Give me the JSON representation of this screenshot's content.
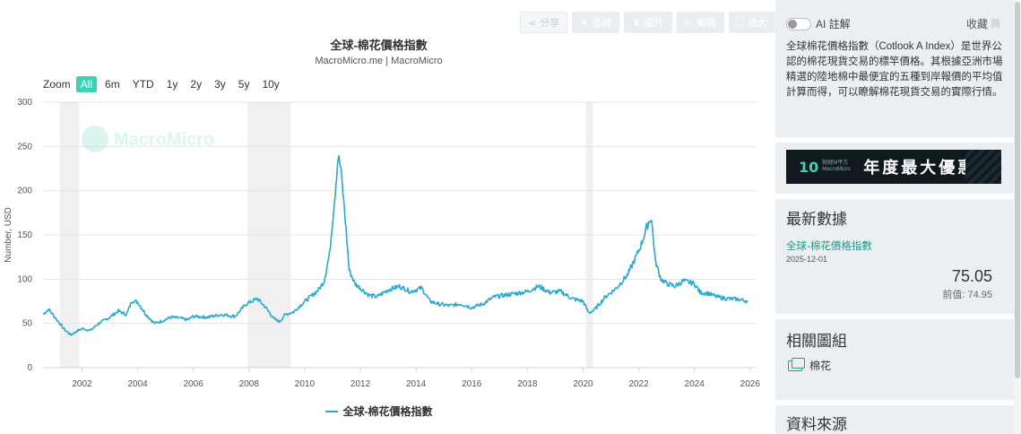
{
  "toolbar": {
    "share_label": "分享",
    "follow_label": "追蹤",
    "image_label": "圖片",
    "edit_label": "編輯",
    "enlarge_label": "放大"
  },
  "chart": {
    "title": "全球-棉花價格指數",
    "subtitle": "MacroMicro.me | MacroMicro",
    "watermark": "MacroMicro",
    "zoom_label": "Zoom",
    "zoom_options": [
      "All",
      "6m",
      "YTD",
      "1y",
      "2y",
      "3y",
      "5y",
      "10y"
    ],
    "zoom_active": "All",
    "legend_label": "全球-棉花價格指數"
  },
  "chart_data": {
    "type": "line",
    "title": "全球-棉花價格指數",
    "subtitle": "MacroMicro.me | MacroMicro",
    "xlabel": "",
    "ylabel": "Number, USD",
    "ylim": [
      0,
      300
    ],
    "yticks": [
      0,
      50,
      100,
      150,
      200,
      250,
      300
    ],
    "xlim": [
      2000.6,
      2026.2
    ],
    "xticks": [
      2002,
      2004,
      2006,
      2008,
      2010,
      2012,
      2014,
      2016,
      2018,
      2020,
      2022,
      2024,
      2026
    ],
    "grid": true,
    "legend_position": "bottom",
    "line_color": "#2aa8cf",
    "recession_shading": [
      [
        2001.2,
        2001.9
      ],
      [
        2007.95,
        2009.5
      ],
      [
        2020.1,
        2020.35
      ]
    ],
    "series": [
      {
        "name": "全球-棉花價格指數",
        "x": [
          2000.6,
          2000.8,
          2001.0,
          2001.2,
          2001.4,
          2001.6,
          2001.8,
          2002.0,
          2002.3,
          2002.6,
          2003.0,
          2003.3,
          2003.6,
          2003.8,
          2004.0,
          2004.3,
          2004.6,
          2004.9,
          2005.2,
          2005.5,
          2005.8,
          2006.0,
          2006.5,
          2007.0,
          2007.5,
          2007.9,
          2008.1,
          2008.3,
          2008.6,
          2008.9,
          2009.1,
          2009.3,
          2009.6,
          2009.9,
          2010.2,
          2010.5,
          2010.7,
          2010.9,
          2011.0,
          2011.1,
          2011.2,
          2011.3,
          2011.45,
          2011.6,
          2011.8,
          2012.0,
          2012.3,
          2012.6,
          2013.0,
          2013.4,
          2013.8,
          2014.2,
          2014.5,
          2014.8,
          2015.2,
          2015.6,
          2016.0,
          2016.4,
          2016.8,
          2017.2,
          2017.6,
          2018.0,
          2018.4,
          2018.8,
          2019.2,
          2019.6,
          2020.0,
          2020.2,
          2020.4,
          2020.8,
          2021.2,
          2021.6,
          2021.9,
          2022.1,
          2022.3,
          2022.45,
          2022.6,
          2022.8,
          2023.0,
          2023.3,
          2023.6,
          2024.0,
          2024.2,
          2024.5,
          2024.8,
          2025.2,
          2025.6,
          2025.92
        ],
        "values": [
          60,
          66,
          58,
          50,
          42,
          37,
          41,
          44,
          42,
          50,
          57,
          64,
          60,
          76,
          74,
          60,
          50,
          53,
          57,
          56,
          54,
          58,
          57,
          60,
          58,
          72,
          75,
          78,
          68,
          55,
          52,
          60,
          63,
          72,
          80,
          88,
          98,
          130,
          165,
          200,
          240,
          225,
          170,
          110,
          95,
          90,
          82,
          80,
          88,
          92,
          86,
          90,
          75,
          72,
          70,
          72,
          68,
          72,
          80,
          82,
          84,
          86,
          92,
          85,
          86,
          78,
          75,
          62,
          65,
          80,
          90,
          105,
          125,
          140,
          160,
          170,
          120,
          100,
          95,
          92,
          98,
          95,
          85,
          84,
          80,
          78,
          77,
          75.05
        ]
      }
    ]
  },
  "sidebar": {
    "ai_label": "AI 註解",
    "collect_label": "收藏",
    "description": "全球棉花價格指數（Cotlook A Index）是世界公認的棉花現貨交易的標竿價格。其根據亞洲市場精選的陸地棉中最便宜的五種到岸報價的平均值計算而得，可以瞭解棉花現貨交易的實際行情。",
    "banner": {
      "logo_text": "10",
      "small_text": "財經M平方 MacroMicro",
      "headline": "年度最大優惠"
    },
    "latest": {
      "title": "最新數據",
      "series_name": "全球-棉花價格指數",
      "date": "2025-12-01",
      "value": "75.05",
      "previous": "前值: 74.95"
    },
    "related": {
      "title": "相關圖組",
      "item_label": "棉花"
    },
    "source": {
      "title": "資料來源"
    }
  }
}
